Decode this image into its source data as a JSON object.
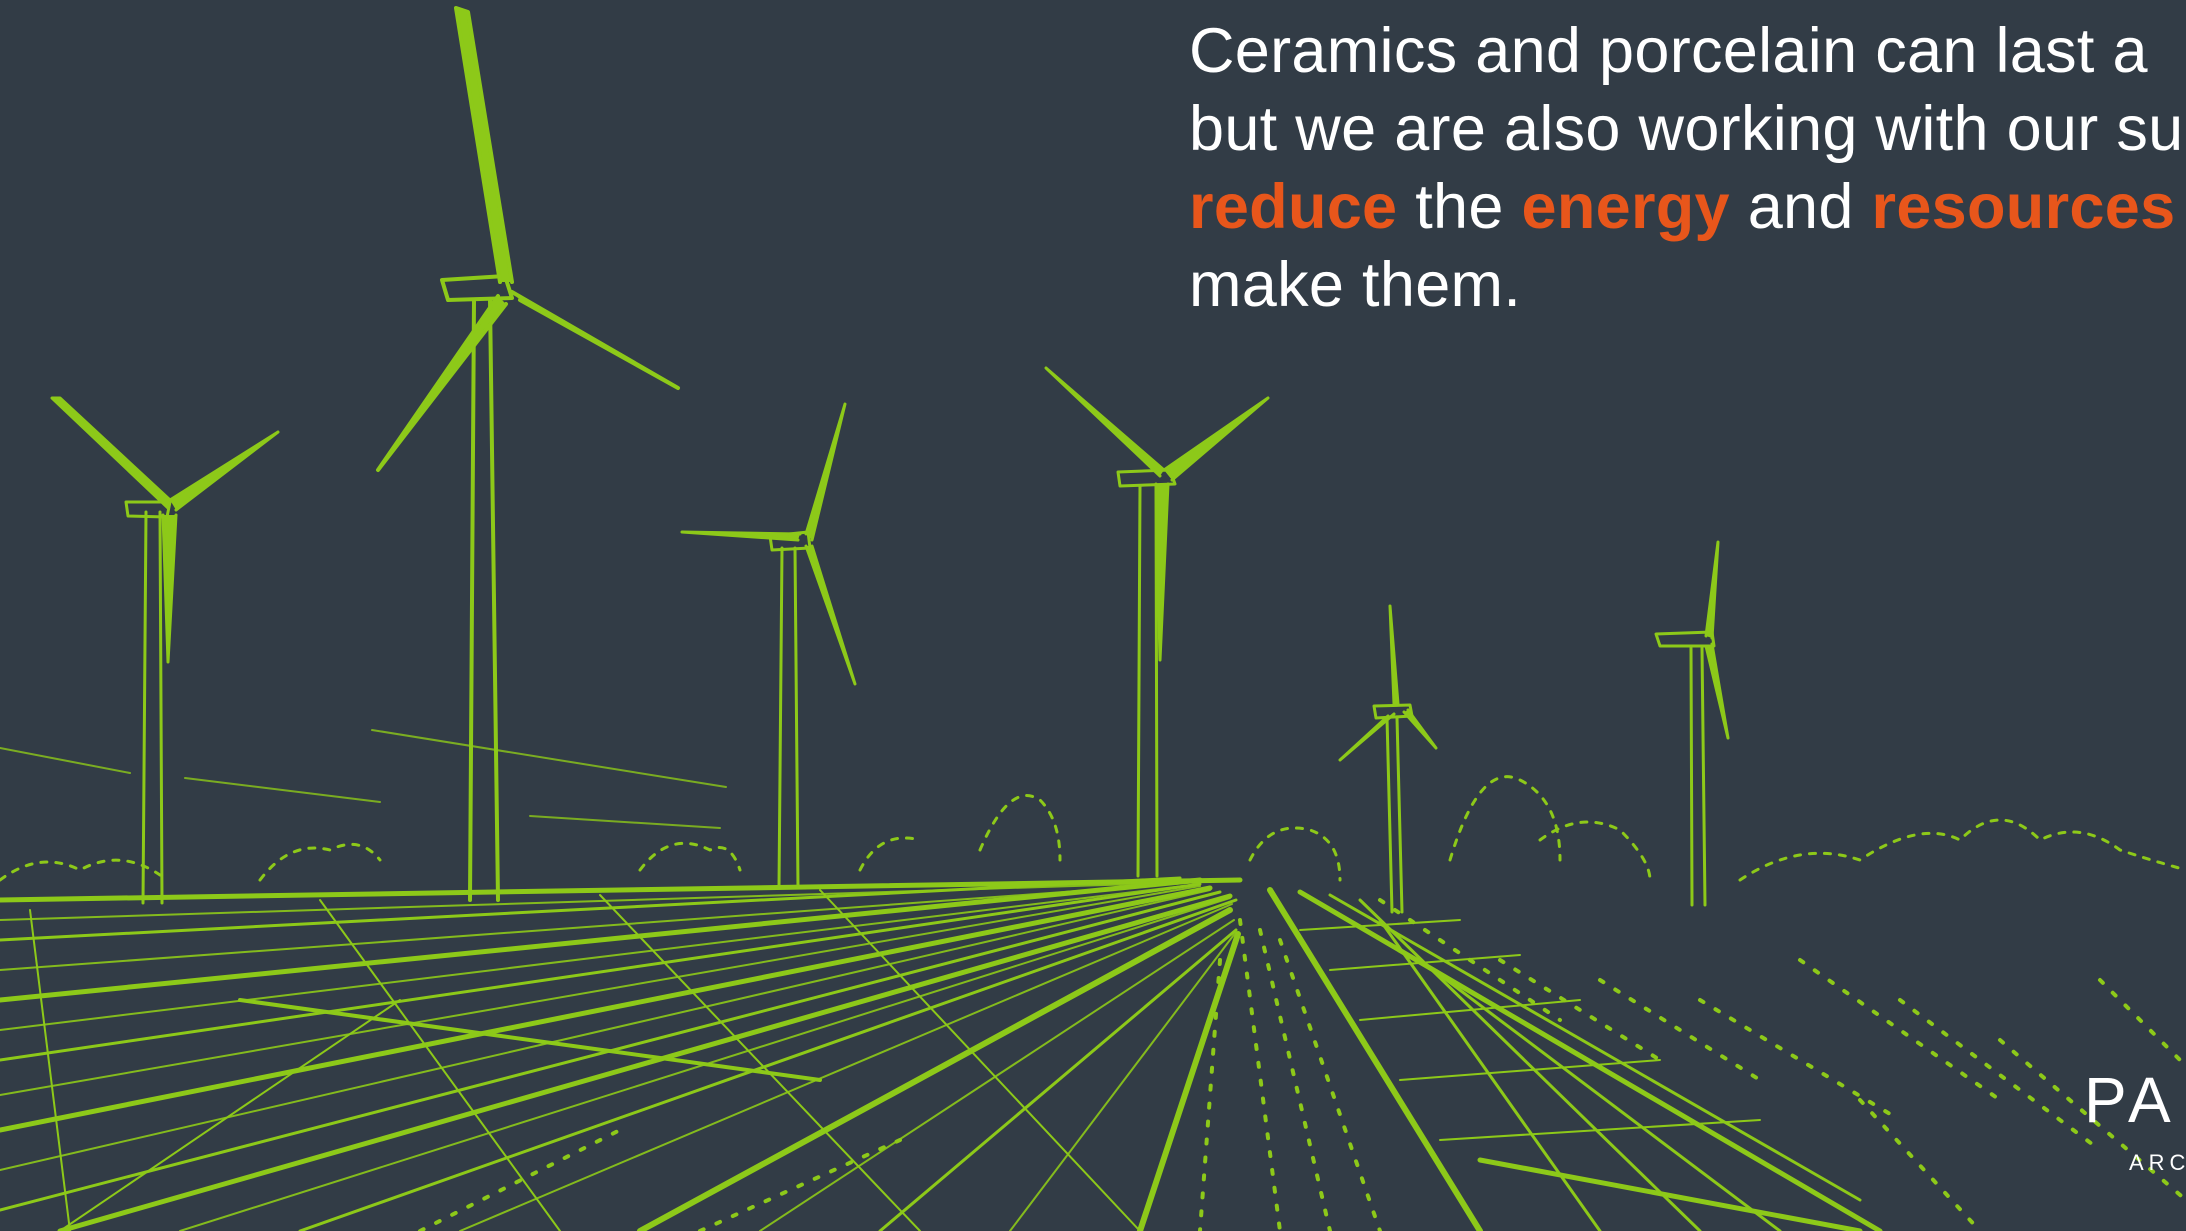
{
  "headline": {
    "line1": "Ceramics and porcelain can last a",
    "line2": "but we are also working with our su",
    "line3": {
      "w1": "reduce",
      "t1": " the ",
      "w2": "energy",
      "t2": " and ",
      "w3": "resources"
    },
    "line4": "make them."
  },
  "logo": {
    "mark": "PA",
    "sub": "ARC"
  },
  "colors": {
    "background": "#323c46",
    "illustration": "#8dc919",
    "text": "#ffffff",
    "highlight": "#e8561b"
  }
}
